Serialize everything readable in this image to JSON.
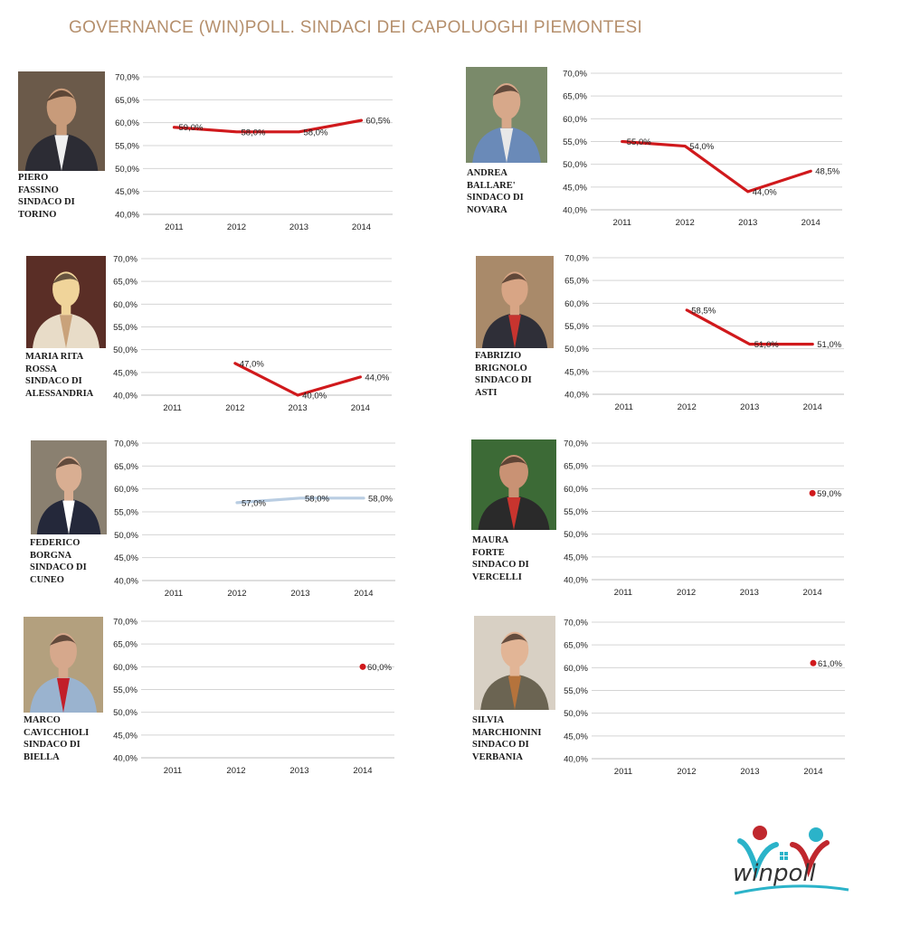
{
  "title": "GOVERNANCE (WIN)POLL. SINDACI DEI CAPOLUOGHI PIEMONTESI",
  "logo_text": "winpoll",
  "colors": {
    "title": "#b58f6c",
    "series_red": "#d0191c",
    "series_light": "#b9cde2",
    "grid": "#d4d4d4",
    "logo_teal": "#2bb3c9",
    "logo_red": "#c0272d"
  },
  "chart_data": [
    {
      "type": "line",
      "name_lines": [
        "PIERO",
        "FASSINO",
        "SINDACO DI",
        "TORINO"
      ],
      "categories": [
        "2011",
        "2012",
        "2013",
        "2014"
      ],
      "values": [
        59.0,
        58.0,
        58.0,
        60.5
      ],
      "labels": [
        "59,0%",
        "58,0%",
        "58,0%",
        "60,5%"
      ],
      "color": "#d0191c",
      "ylim": [
        40,
        70
      ],
      "yticks": [
        "70,0%",
        "65,0%",
        "60,0%",
        "55,0%",
        "50,0%",
        "45,0%",
        "40,0%"
      ],
      "grid": true
    },
    {
      "type": "line",
      "name_lines": [
        "ANDREA",
        "BALLARE'",
        "SINDACO DI",
        "NOVARA"
      ],
      "categories": [
        "2011",
        "2012",
        "2013",
        "2014"
      ],
      "values": [
        55.0,
        54.0,
        44.0,
        48.5
      ],
      "labels": [
        "55,0%",
        "54,0%",
        "44,0%",
        "48,5%"
      ],
      "color": "#d0191c",
      "ylim": [
        40,
        70
      ],
      "yticks": [
        "70,0%",
        "65,0%",
        "60,0%",
        "55,0%",
        "50,0%",
        "45,0%",
        "40,0%"
      ],
      "grid": true
    },
    {
      "type": "line",
      "name_lines": [
        "MARIA RITA",
        "ROSSA",
        "SINDACO DI",
        "ALESSANDRIA"
      ],
      "categories": [
        "2011",
        "2012",
        "2013",
        "2014"
      ],
      "values": [
        null,
        47.0,
        40.0,
        44.0
      ],
      "labels": [
        "",
        "47,0%",
        "40,0%",
        "44,0%"
      ],
      "color": "#d0191c",
      "ylim": [
        40,
        70
      ],
      "yticks": [
        "70,0%",
        "65,0%",
        "60,0%",
        "55,0%",
        "50,0%",
        "45,0%",
        "40,0%"
      ],
      "grid": true
    },
    {
      "type": "line",
      "name_lines": [
        "FABRIZIO",
        "BRIGNOLO",
        "SINDACO DI",
        "ASTI"
      ],
      "categories": [
        "2011",
        "2012",
        "2013",
        "2014"
      ],
      "values": [
        null,
        58.5,
        51.0,
        51.0
      ],
      "labels": [
        "",
        "58,5%",
        "51,0%",
        "51,0%"
      ],
      "color": "#d0191c",
      "ylim": [
        40,
        70
      ],
      "yticks": [
        "70,0%",
        "65,0%",
        "60,0%",
        "55,0%",
        "50,0%",
        "45,0%",
        "40,0%"
      ],
      "grid": true
    },
    {
      "type": "line",
      "name_lines": [
        "FEDERICO",
        "BORGNA",
        "SINDACO DI",
        "CUNEO"
      ],
      "categories": [
        "2011",
        "2012",
        "2013",
        "2014"
      ],
      "values": [
        null,
        57.0,
        58.0,
        58.0
      ],
      "labels": [
        "",
        "57,0%",
        "58,0%",
        "58,0%"
      ],
      "color": "#b9cde2",
      "ylim": [
        40,
        70
      ],
      "yticks": [
        "70,0%",
        "65,0%",
        "60,0%",
        "55,0%",
        "50,0%",
        "45,0%",
        "40,0%"
      ],
      "grid": true
    },
    {
      "type": "line",
      "name_lines": [
        "MAURA",
        "FORTE",
        "SINDACO DI",
        "VERCELLI"
      ],
      "categories": [
        "2011",
        "2012",
        "2013",
        "2014"
      ],
      "values": [
        null,
        null,
        null,
        59.0
      ],
      "labels": [
        "",
        "",
        "",
        "59,0%"
      ],
      "color": "#d0191c",
      "ylim": [
        40,
        70
      ],
      "yticks": [
        "70,0%",
        "65,0%",
        "60,0%",
        "55,0%",
        "50,0%",
        "45,0%",
        "40,0%"
      ],
      "grid": true
    },
    {
      "type": "line",
      "name_lines": [
        "MARCO",
        "CAVICCHIOLI",
        "SINDACO DI",
        "BIELLA"
      ],
      "categories": [
        "2011",
        "2012",
        "2013",
        "2014"
      ],
      "values": [
        null,
        null,
        null,
        60.0
      ],
      "labels": [
        "",
        "",
        "",
        "60,0%"
      ],
      "color": "#d0191c",
      "ylim": [
        40,
        70
      ],
      "yticks": [
        "70,0%",
        "65,0%",
        "60,0%",
        "55,0%",
        "50,0%",
        "45,0%",
        "40,0%"
      ],
      "grid": true
    },
    {
      "type": "line",
      "name_lines": [
        "SILVIA",
        "MARCHIONINI",
        "SINDACO DI",
        "VERBANIA"
      ],
      "categories": [
        "2011",
        "2012",
        "2013",
        "2014"
      ],
      "values": [
        null,
        null,
        null,
        61.0
      ],
      "labels": [
        "",
        "",
        "",
        "61,0%"
      ],
      "color": "#d0191c",
      "ylim": [
        40,
        70
      ],
      "yticks": [
        "70,0%",
        "65,0%",
        "60,0%",
        "55,0%",
        "50,0%",
        "45,0%",
        "40,0%"
      ],
      "grid": true
    }
  ]
}
